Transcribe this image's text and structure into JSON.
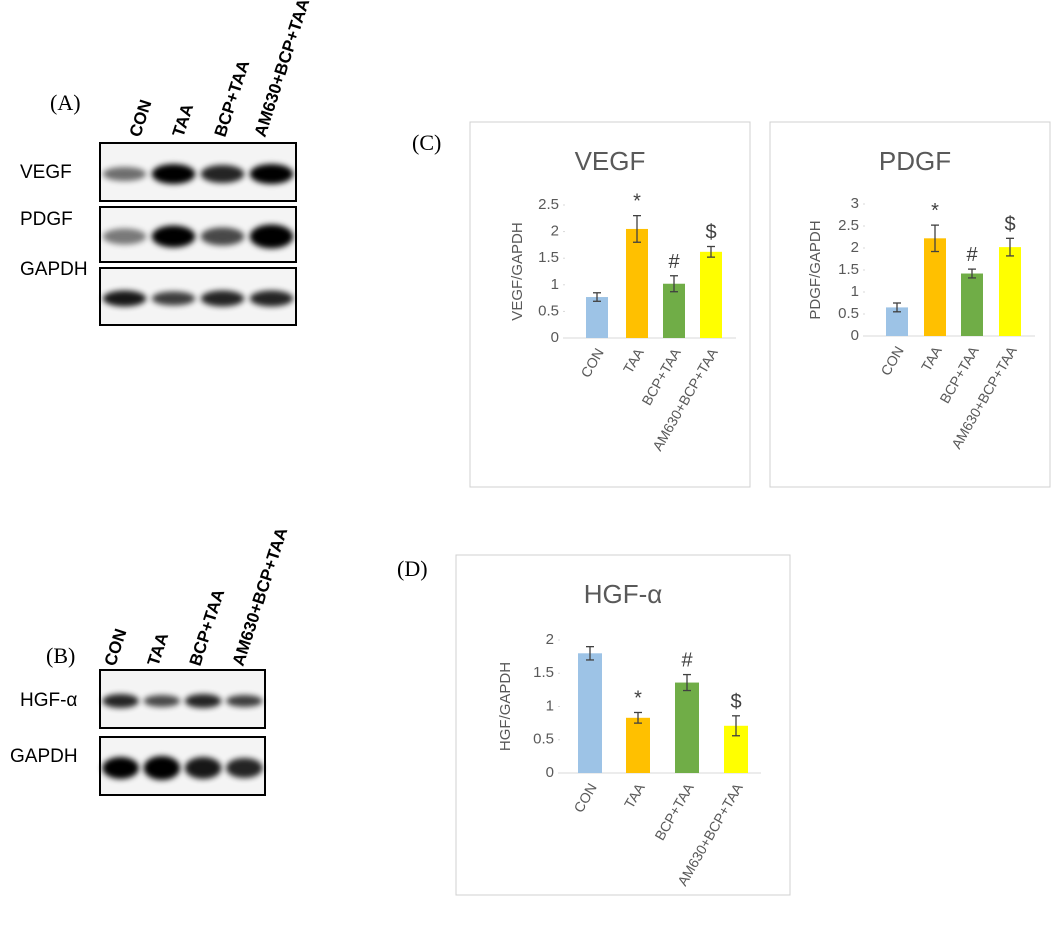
{
  "panel_labels": [
    "(A)",
    "(B)",
    "(C)",
    "(D)"
  ],
  "blot_a": {
    "lanes": [
      "CON",
      "TAA",
      "BCP+TAA",
      "AM630+BCP+TAA"
    ],
    "rows": [
      "VEGF",
      "PDGF",
      "GAPDH"
    ]
  },
  "blot_b": {
    "lanes": [
      "CON",
      "TAA",
      "BCP+TAA",
      "AM630+BCP+TAA"
    ],
    "rows": [
      "HGF-α",
      "GAPDH"
    ]
  },
  "chart_data": [
    {
      "type": "bar",
      "title": "VEGF",
      "y_label": "VEGF/GAPDH",
      "categories": [
        "CON",
        "TAA",
        "BCP+TAA",
        "AM630+BCP+TAA"
      ],
      "values": [
        0.77,
        2.05,
        1.02,
        1.62
      ],
      "errors": [
        0.08,
        0.25,
        0.15,
        0.1
      ],
      "annotations": [
        null,
        "*",
        "#",
        "$"
      ],
      "colors": [
        "#9dc3e6",
        "#ffc000",
        "#70ad47",
        "#ffff00"
      ],
      "ylim": [
        0,
        2.5
      ],
      "yticks": [
        0,
        0.5,
        1,
        1.5,
        2,
        2.5
      ]
    },
    {
      "type": "bar",
      "title": "PDGF",
      "y_label": "PDGF/GAPDH",
      "categories": [
        "CON",
        "TAA",
        "BCP+TAA",
        "AM630+BCP+TAA"
      ],
      "values": [
        0.65,
        2.22,
        1.42,
        2.02
      ],
      "errors": [
        0.1,
        0.3,
        0.1,
        0.2
      ],
      "annotations": [
        null,
        "*",
        "#",
        "$"
      ],
      "colors": [
        "#9dc3e6",
        "#ffc000",
        "#70ad47",
        "#ffff00"
      ],
      "ylim": [
        0,
        3
      ],
      "yticks": [
        0,
        0.5,
        1,
        1.5,
        2,
        2.5,
        3
      ]
    },
    {
      "type": "bar",
      "title": "HGF-α",
      "y_label": "HGF/GAPDH",
      "categories": [
        "CON",
        "TAA",
        "BCP+TAA",
        "AM630+BCP+TAA"
      ],
      "values": [
        1.8,
        0.83,
        1.36,
        0.71
      ],
      "errors": [
        0.1,
        0.08,
        0.12,
        0.15
      ],
      "annotations": [
        null,
        "*",
        "#",
        "$"
      ],
      "colors": [
        "#9dc3e6",
        "#ffc000",
        "#70ad47",
        "#ffff00"
      ],
      "ylim": [
        0,
        2
      ],
      "yticks": [
        0,
        0.5,
        1,
        1.5,
        2
      ]
    }
  ]
}
